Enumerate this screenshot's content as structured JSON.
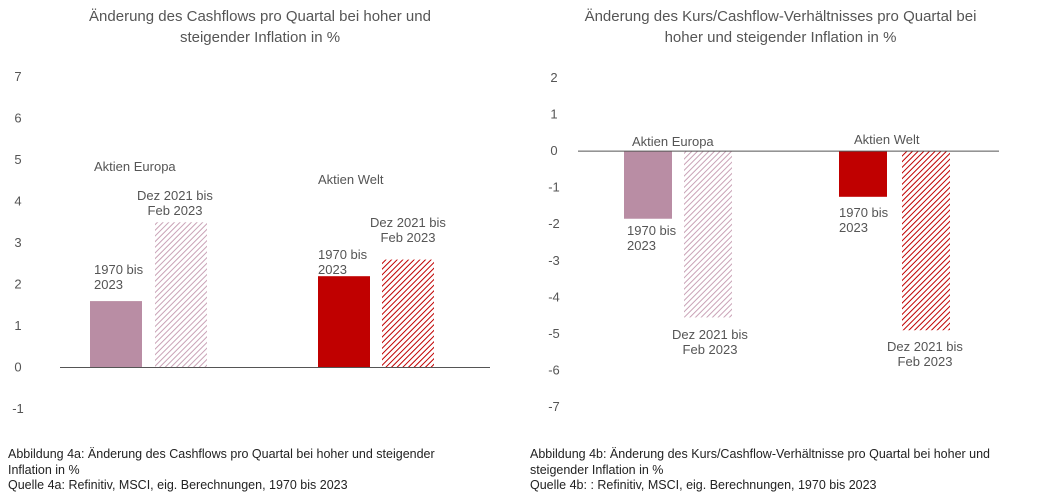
{
  "colors": {
    "europe_solid": "#b98da4",
    "europe_hatch": "#c9a2b6",
    "world_solid": "#c00000",
    "world_hatch": "#c00000",
    "axis": "#555555",
    "text": "#555555"
  },
  "left": {
    "title_lines": [
      "Änderung des Cashflows pro Quartal bei hoher und",
      "steigender Inflation in %"
    ],
    "caption_lines": [
      "Abbildung 4a: Änderung des Cashflows pro Quartal bei hoher und steigender",
      "Inflation in %",
      "Quelle 4a: Refinitiv, MSCI, eig. Berechnungen, 1970 bis 2023"
    ]
  },
  "right": {
    "title_lines": [
      "Änderung des Kurs/Cashflow-Verhältnisses pro Quartal bei",
      "hoher und steigender Inflation in %"
    ],
    "caption_lines": [
      "Abbildung 4b: Änderung des Kurs/Cashflow-Verhältnisse pro Quartal bei hoher und",
      "steigender Inflation in %",
      "Quelle 4b: : Refinitiv, MSCI, eig. Berechnungen, 1970 bis 2023"
    ]
  },
  "chart_data": [
    {
      "type": "bar",
      "title": "Änderung des Cashflows pro Quartal bei hoher und steigender Inflation in %",
      "categories": [
        "Aktien Europa",
        "Aktien Welt"
      ],
      "series": [
        {
          "name": "1970 bis 2023",
          "values": [
            1.6,
            2.2
          ]
        },
        {
          "name": "Dez 2021 bis Feb 2023",
          "values": [
            3.5,
            2.6
          ]
        }
      ],
      "ylim": [
        -1,
        7
      ],
      "yticks": [
        "-1",
        "0",
        "1",
        "2",
        "3",
        "4",
        "5",
        "6",
        "7"
      ],
      "grid": false,
      "legend": "none",
      "bar_labels": [
        [
          "1970 bis",
          "2023"
        ],
        [
          "Dez 2021 bis",
          "Feb 2023"
        ],
        [
          "1970 bis",
          "2023"
        ],
        [
          "Dez 2021 bis",
          "Feb 2023"
        ]
      ]
    },
    {
      "type": "bar",
      "title": "Änderung des Kurs/Cashflow-Verhältnisses pro Quartal bei hoher und steigender Inflation in %",
      "categories": [
        "Aktien Europa",
        "Aktien Welt"
      ],
      "series": [
        {
          "name": "1970 bis 2023",
          "values": [
            -1.85,
            -1.25
          ]
        },
        {
          "name": "Dez 2021 bis Feb 2023",
          "values": [
            -4.55,
            -4.9
          ]
        }
      ],
      "ylim": [
        -7,
        2
      ],
      "yticks": [
        "-7",
        "-6",
        "-5",
        "-4",
        "-3",
        "-2",
        "-1",
        "0",
        "1",
        "2"
      ],
      "grid": false,
      "legend": "none",
      "bar_labels": [
        [
          "1970 bis",
          "2023"
        ],
        [
          "Dez 2021 bis",
          "Feb 2023"
        ],
        [
          "1970 bis",
          "2023"
        ],
        [
          "Dez 2021 bis",
          "Feb 2023"
        ]
      ]
    }
  ]
}
